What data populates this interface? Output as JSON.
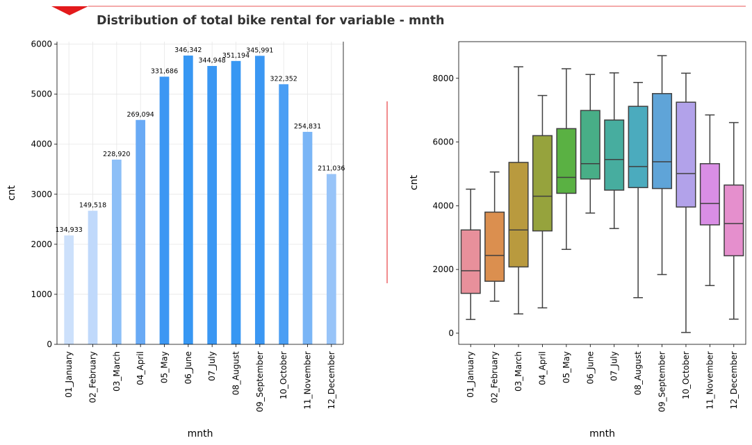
{
  "title": "Distribution of total bike rental for variable - mnth",
  "accent_color": "#e31a1c",
  "chart_data": [
    {
      "type": "bar",
      "categories": [
        "01_January",
        "02_February",
        "03_March",
        "04_April",
        "05_May",
        "06_June",
        "07_July",
        "08_August",
        "09_September",
        "10_October",
        "11_November",
        "12_December"
      ],
      "values": [
        2176,
        2670,
        3692,
        4485,
        5350,
        5772,
        5564,
        5664,
        5767,
        5199,
        4247,
        3404
      ],
      "data_labels": [
        "134,933",
        "149,518",
        "228,920",
        "269,094",
        "331,686",
        "346,342",
        "344,948",
        "351,194",
        "345,991",
        "322,352",
        "254,831",
        "211,036"
      ],
      "colors": [
        "#cce0fb",
        "#c0d9fb",
        "#8dbff7",
        "#69aaf5",
        "#3c97f3",
        "#3797f3",
        "#3a97f3",
        "#3797f3",
        "#3b97f3",
        "#4a9ef4",
        "#7ab5f6",
        "#98c4f8"
      ],
      "xlabel": "mnth",
      "ylabel": "cnt",
      "ylim": [
        0,
        6050
      ],
      "yticks": [
        0,
        1000,
        2000,
        3000,
        4000,
        5000,
        6000
      ],
      "grid": true
    },
    {
      "type": "box",
      "categories": [
        "01_January",
        "02_February",
        "03_March",
        "04_April",
        "05_May",
        "06_June",
        "07_July",
        "08_August",
        "09_September",
        "10_October",
        "11_November",
        "12_December"
      ],
      "boxes": [
        {
          "min": 431,
          "q1": 1250,
          "median": 1960,
          "q3": 3240,
          "max": 4520,
          "color": "#e8909b"
        },
        {
          "min": 1005,
          "q1": 1630,
          "median": 2440,
          "q3": 3800,
          "max": 5060,
          "color": "#db8f4f"
        },
        {
          "min": 605,
          "q1": 2080,
          "median": 3240,
          "q3": 5360,
          "max": 8360,
          "color": "#b99a3e"
        },
        {
          "min": 795,
          "q1": 3210,
          "median": 4300,
          "q3": 6200,
          "max": 7460,
          "color": "#96a33d"
        },
        {
          "min": 2630,
          "q1": 4390,
          "median": 4890,
          "q3": 6420,
          "max": 8300,
          "color": "#5ab143"
        },
        {
          "min": 3770,
          "q1": 4840,
          "median": 5320,
          "q3": 6990,
          "max": 8120,
          "color": "#48ae87"
        },
        {
          "min": 3285,
          "q1": 4490,
          "median": 5450,
          "q3": 6690,
          "max": 8170,
          "color": "#47ad9f"
        },
        {
          "min": 1115,
          "q1": 4570,
          "median": 5230,
          "q3": 7120,
          "max": 7870,
          "color": "#4babbe"
        },
        {
          "min": 1840,
          "q1": 4540,
          "median": 5380,
          "q3": 7520,
          "max": 8710,
          "color": "#5fa4d8"
        },
        {
          "min": 22,
          "q1": 3960,
          "median": 5010,
          "q3": 7250,
          "max": 8160,
          "color": "#b2a2ea"
        },
        {
          "min": 1495,
          "q1": 3400,
          "median": 4070,
          "q3": 5320,
          "max": 6850,
          "color": "#d98ee5"
        },
        {
          "min": 441,
          "q1": 2430,
          "median": 3440,
          "q3": 4650,
          "max": 6610,
          "color": "#e58fcd"
        }
      ],
      "xlabel": "mnth",
      "ylabel": "cnt",
      "ylim": [
        -350,
        9150
      ],
      "yticks": [
        0,
        2000,
        4000,
        6000,
        8000
      ],
      "grid": false
    }
  ]
}
